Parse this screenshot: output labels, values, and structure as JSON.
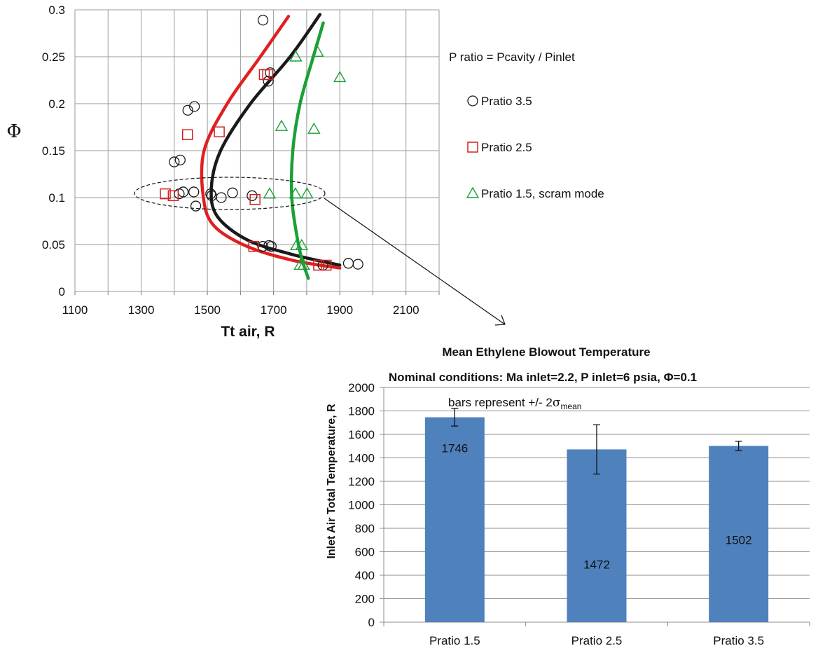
{
  "chart_data": [
    {
      "type": "scatter",
      "title": "",
      "xlabel": "Tt air, R",
      "ylabel": "Φ",
      "xlim": [
        1100,
        2200
      ],
      "ylim": [
        0,
        0.3
      ],
      "x_ticks": [
        "1100",
        "1300",
        "1500",
        "1700",
        "1900",
        "2100"
      ],
      "y_ticks": [
        "0",
        "0.05",
        "0.1",
        "0.15",
        "0.2",
        "0.25",
        "0.3"
      ],
      "grid": true,
      "legend_placement": "right",
      "legend_title": "P ratio = Pcavity / Pinlet",
      "series": [
        {
          "name": "Pratio 3.5",
          "marker": "circle",
          "color": "#1a1a1a",
          "points": [
            [
              1668,
              0.289
            ],
            [
              1690,
              0.233
            ],
            [
              1684,
              0.224
            ],
            [
              1461,
              0.197
            ],
            [
              1441,
              0.193
            ],
            [
              1418,
              0.14
            ],
            [
              1400,
              0.138
            ],
            [
              1427,
              0.106
            ],
            [
              1459,
              0.106
            ],
            [
              1415,
              0.104
            ],
            [
              1510,
              0.104
            ],
            [
              1513,
              0.102
            ],
            [
              1576,
              0.105
            ],
            [
              1542,
              0.1
            ],
            [
              1635,
              0.102
            ],
            [
              1465,
              0.091
            ],
            [
              1667,
              0.048
            ],
            [
              1686,
              0.049
            ],
            [
              1693,
              0.048
            ],
            [
              1849,
              0.028
            ],
            [
              1926,
              0.03
            ],
            [
              1955,
              0.029
            ]
          ]
        },
        {
          "name": "Pratio 2.5",
          "marker": "square",
          "color": "#d42020",
          "points": [
            [
              1672,
              0.231
            ],
            [
              1682,
              0.231
            ],
            [
              1536,
              0.17
            ],
            [
              1440,
              0.167
            ],
            [
              1373,
              0.104
            ],
            [
              1397,
              0.102
            ],
            [
              1644,
              0.098
            ],
            [
              1640,
              0.048
            ],
            [
              1836,
              0.028
            ],
            [
              1859,
              0.028
            ]
          ]
        },
        {
          "name": "Pratio 1.5, scram mode",
          "marker": "triangle",
          "color": "#1aa036",
          "points": [
            [
              1767,
              0.25
            ],
            [
              1833,
              0.255
            ],
            [
              1900,
              0.228
            ],
            [
              1724,
              0.176
            ],
            [
              1822,
              0.173
            ],
            [
              1688,
              0.104
            ],
            [
              1766,
              0.104
            ],
            [
              1801,
              0.104
            ],
            [
              1769,
              0.049
            ],
            [
              1785,
              0.049
            ],
            [
              1780,
              0.028
            ],
            [
              1791,
              0.028
            ]
          ]
        }
      ],
      "fit_curves": [
        {
          "color": "#1a1a1a",
          "points": [
            [
              1840,
              0.295
            ],
            [
              1750,
              0.25
            ],
            [
              1630,
              0.2
            ],
            [
              1540,
              0.15
            ],
            [
              1512,
              0.11
            ],
            [
              1530,
              0.08
            ],
            [
              1620,
              0.055
            ],
            [
              1750,
              0.04
            ],
            [
              1900,
              0.028
            ]
          ]
        },
        {
          "color": "#e02020",
          "points": [
            [
              1745,
              0.293
            ],
            [
              1660,
              0.25
            ],
            [
              1560,
              0.2
            ],
            [
              1490,
              0.15
            ],
            [
              1488,
              0.1
            ],
            [
              1520,
              0.07
            ],
            [
              1620,
              0.048
            ],
            [
              1760,
              0.033
            ],
            [
              1900,
              0.025
            ]
          ]
        },
        {
          "color": "#1aa036",
          "points": [
            [
              1850,
              0.286
            ],
            [
              1820,
              0.25
            ],
            [
              1780,
              0.2
            ],
            [
              1758,
              0.15
            ],
            [
              1755,
              0.1
            ],
            [
              1770,
              0.06
            ],
            [
              1785,
              0.035
            ],
            [
              1805,
              0.014
            ]
          ]
        }
      ],
      "annotation": "dashed ellipse around Φ = 0.1 points with arrow to bar chart"
    },
    {
      "type": "bar",
      "title_line1": "Mean Ethylene Blowout Temperature",
      "title_line2": "Nominal conditions: Ma inlet=2.2, P inlet=6 psia, Φ=0.1",
      "note_prefix": "bars represent +/- 2",
      "note_sigma": "σ",
      "note_sub": "mean",
      "xlabel": "",
      "ylabel": "Inlet Air Total Temperature, R",
      "ylim": [
        0,
        2000
      ],
      "y_ticks": [
        "0",
        "200",
        "400",
        "600",
        "800",
        "1000",
        "1200",
        "1400",
        "1600",
        "1800",
        "2000"
      ],
      "categories": [
        "Pratio 1.5",
        "Pratio 2.5",
        "Pratio 3.5"
      ],
      "values": [
        1746,
        1472,
        1502
      ],
      "value_labels": [
        "1746",
        "1472",
        "1502"
      ],
      "errors": [
        75,
        210,
        40
      ],
      "bar_color": "#4f81bd",
      "grid": true
    }
  ]
}
